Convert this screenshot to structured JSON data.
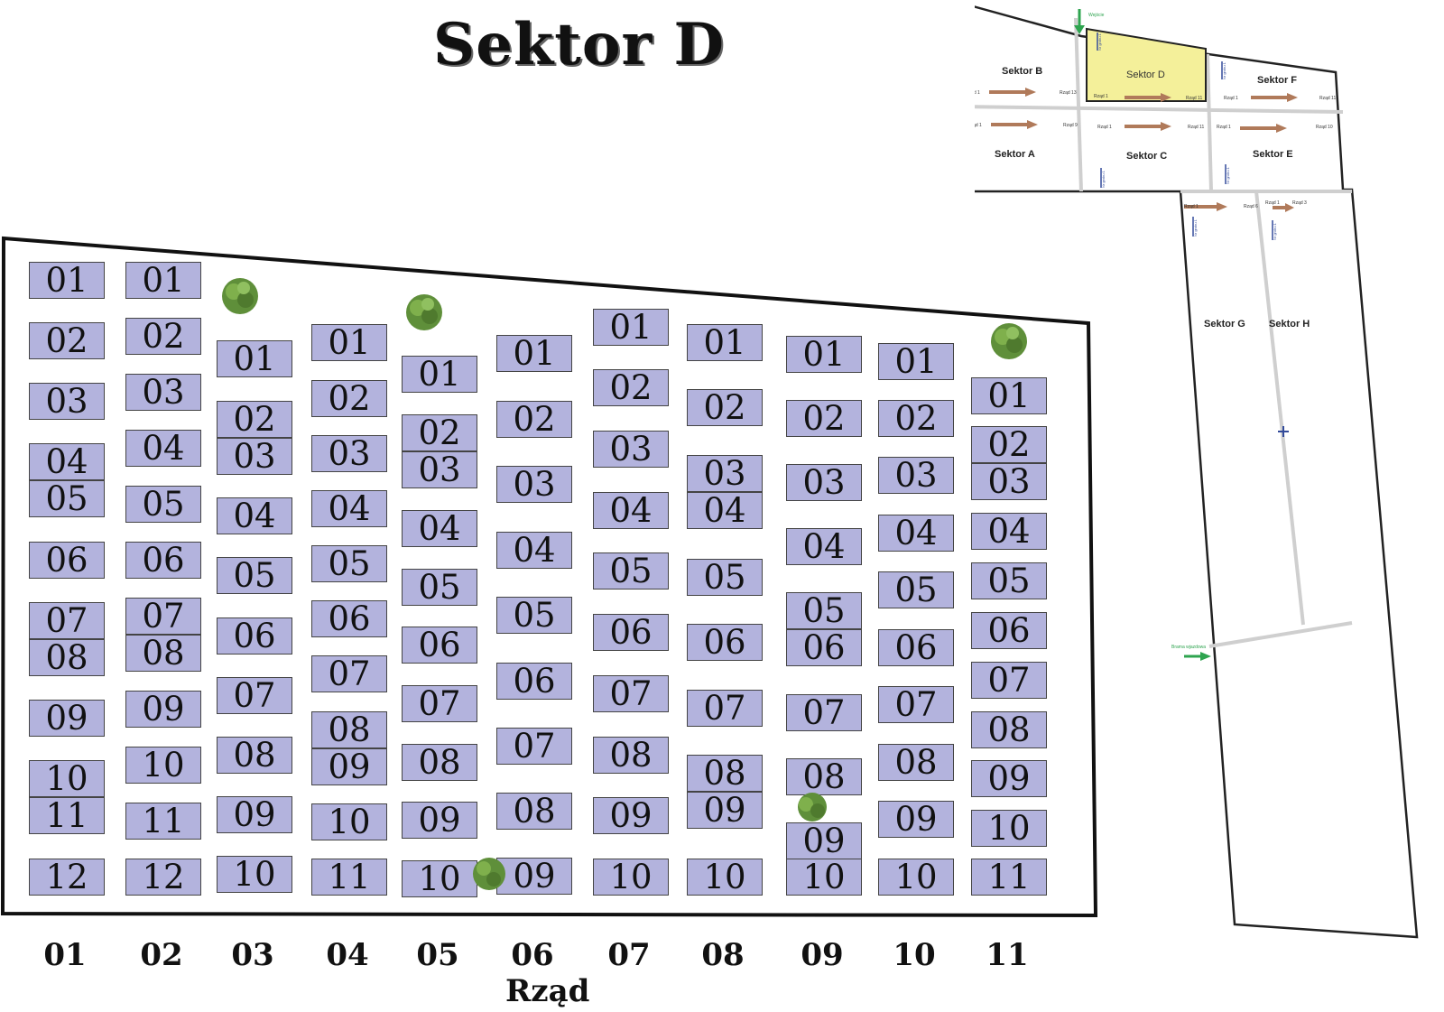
{
  "title": "Sektor D",
  "axis_label": "Rząd",
  "row_labels": [
    "01",
    "02",
    "03",
    "04",
    "05",
    "06",
    "07",
    "08",
    "09",
    "10",
    "11"
  ],
  "plot_fill": "#b3b3dd",
  "columns": [
    {
      "row": "01",
      "plots": [
        "01",
        "02",
        "03",
        "04",
        "05",
        "06",
        "07",
        "08",
        "09",
        "10",
        "11",
        "12"
      ]
    },
    {
      "row": "02",
      "plots": [
        "01",
        "02",
        "03",
        "04",
        "05",
        "06",
        "07",
        "08",
        "09",
        "10",
        "11",
        "12"
      ]
    },
    {
      "row": "03",
      "plots": [
        "01",
        "02",
        "03",
        "04",
        "05",
        "06",
        "07",
        "08",
        "09",
        "10"
      ]
    },
    {
      "row": "04",
      "plots": [
        "01",
        "02",
        "03",
        "04",
        "05",
        "06",
        "07",
        "08",
        "09",
        "10",
        "11"
      ]
    },
    {
      "row": "05",
      "plots": [
        "01",
        "02",
        "03",
        "04",
        "05",
        "06",
        "07",
        "08",
        "09",
        "10"
      ]
    },
    {
      "row": "06",
      "plots": [
        "01",
        "02",
        "03",
        "04",
        "05",
        "06",
        "07",
        "08",
        "09"
      ]
    },
    {
      "row": "07",
      "plots": [
        "01",
        "02",
        "03",
        "04",
        "05",
        "06",
        "07",
        "08",
        "09",
        "10"
      ]
    },
    {
      "row": "08",
      "plots": [
        "01",
        "02",
        "03",
        "04",
        "05",
        "06",
        "07",
        "08",
        "09",
        "10"
      ]
    },
    {
      "row": "09",
      "plots": [
        "01",
        "02",
        "03",
        "04",
        "05",
        "06",
        "07",
        "08",
        "09",
        "10"
      ]
    },
    {
      "row": "10",
      "plots": [
        "01",
        "02",
        "03",
        "04",
        "05",
        "06",
        "07",
        "08",
        "09",
        "10"
      ]
    },
    {
      "row": "11",
      "plots": [
        "01",
        "02",
        "03",
        "04",
        "05",
        "06",
        "07",
        "08",
        "09",
        "10",
        "11"
      ]
    }
  ],
  "minimap": {
    "highlight_color": "#f4f09a",
    "sectors": {
      "A": "Sektor A",
      "B": "Sektor B",
      "C": "Sektor C",
      "D": "Sektor D",
      "E": "Sektor E",
      "F": "Sektor F",
      "G": "Sektor G",
      "H": "Sektor H"
    },
    "entry_label": "Wejście",
    "gate_label": "Brama wjazdowa",
    "row_start": "Rząd 1",
    "row_end_b": "Rząd 13",
    "row_end_a": "Rząd 9",
    "row_end_c": "Rząd 11",
    "row_end_e": "Rząd 10",
    "row_end_f": "Rząd 11",
    "row_end_g": "Rząd 6",
    "row_end_h": "Rząd 3",
    "grave_label": "Nr grobu 1"
  }
}
